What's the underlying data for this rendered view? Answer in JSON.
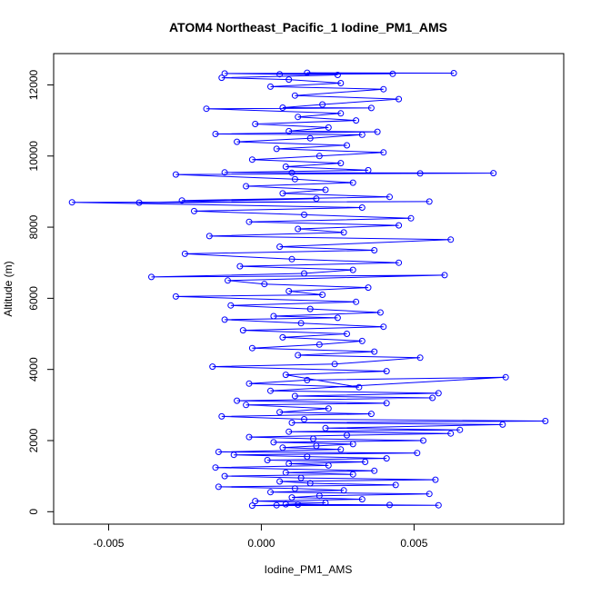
{
  "chart_data": {
    "type": "scatter",
    "title": "ATOM4 Northeast_Pacific_1 Iodine_PM1_AMS",
    "xlabel": "Iodine_PM1_AMS",
    "ylabel": "Altitude (m)",
    "xlim": [
      -0.0068,
      0.0099
    ],
    "ylim": [
      -350,
      12880
    ],
    "xticks": [
      -0.005,
      0.0,
      0.005
    ],
    "xtick_labels": [
      "-0.005",
      "0.000",
      "0.005"
    ],
    "yticks": [
      0,
      2000,
      4000,
      6000,
      8000,
      10000,
      12000
    ],
    "ytick_labels": [
      "0",
      "2000",
      "4000",
      "6000",
      "8000",
      "10000",
      "12000"
    ],
    "grid": false,
    "legend": "none",
    "marker": "open-circle",
    "connected_line": true,
    "series_color": "#0000ff",
    "series": [
      {
        "points": [
          [
            0.0005,
            180
          ],
          [
            0.0042,
            190
          ],
          [
            0.0012,
            200
          ],
          [
            -0.0003,
            170
          ],
          [
            0.0058,
            180
          ],
          [
            0.0008,
            210
          ],
          [
            0.0021,
            250
          ],
          [
            -0.0002,
            300
          ],
          [
            0.0033,
            350
          ],
          [
            0.001,
            400
          ],
          [
            0.0019,
            450
          ],
          [
            0.0055,
            500
          ],
          [
            0.0003,
            550
          ],
          [
            0.0027,
            600
          ],
          [
            0.0011,
            650
          ],
          [
            -0.0014,
            700
          ],
          [
            0.0044,
            750
          ],
          [
            0.0016,
            800
          ],
          [
            0.0006,
            850
          ],
          [
            0.0057,
            900
          ],
          [
            0.0013,
            950
          ],
          [
            -0.0012,
            1000
          ],
          [
            0.003,
            1050
          ],
          [
            0.0008,
            1100
          ],
          [
            0.0037,
            1150
          ],
          [
            -0.0015,
            1240
          ],
          [
            0.0022,
            1300
          ],
          [
            0.0009,
            1350
          ],
          [
            0.0034,
            1400
          ],
          [
            0.0002,
            1450
          ],
          [
            0.0041,
            1500
          ],
          [
            0.0015,
            1550
          ],
          [
            -0.0009,
            1600
          ],
          [
            0.0051,
            1650
          ],
          [
            -0.0014,
            1680
          ],
          [
            0.0026,
            1750
          ],
          [
            0.0007,
            1800
          ],
          [
            0.0018,
            1850
          ],
          [
            0.003,
            1900
          ],
          [
            0.0004,
            1950
          ],
          [
            0.0053,
            2000
          ],
          [
            0.0017,
            2050
          ],
          [
            -0.0004,
            2100
          ],
          [
            0.0028,
            2150
          ],
          [
            0.0062,
            2200
          ],
          [
            0.0009,
            2250
          ],
          [
            0.0065,
            2300
          ],
          [
            0.0021,
            2350
          ],
          [
            0.0079,
            2450
          ],
          [
            0.001,
            2500
          ],
          [
            0.0093,
            2550
          ],
          [
            0.0014,
            2600
          ],
          [
            -0.0013,
            2680
          ],
          [
            0.0036,
            2750
          ],
          [
            0.0006,
            2800
          ],
          [
            0.0022,
            2900
          ],
          [
            -0.0005,
            3000
          ],
          [
            0.0041,
            3050
          ],
          [
            -0.0008,
            3120
          ],
          [
            0.0056,
            3200
          ],
          [
            0.0011,
            3250
          ],
          [
            0.0058,
            3330
          ],
          [
            0.0003,
            3400
          ],
          [
            0.008,
            3780
          ],
          [
            0.0015,
            3700
          ],
          [
            -0.0004,
            3600
          ],
          [
            0.0032,
            3500
          ],
          [
            0.0008,
            3850
          ],
          [
            0.0041,
            3950
          ],
          [
            -0.0016,
            4080
          ],
          [
            0.0024,
            4150
          ],
          [
            0.0052,
            4330
          ],
          [
            0.0012,
            4400
          ],
          [
            0.0037,
            4500
          ],
          [
            -0.0003,
            4600
          ],
          [
            0.0019,
            4700
          ],
          [
            0.0033,
            4800
          ],
          [
            0.0007,
            4900
          ],
          [
            0.0028,
            5000
          ],
          [
            -0.0006,
            5100
          ],
          [
            0.004,
            5200
          ],
          [
            0.0013,
            5300
          ],
          [
            -0.0012,
            5400
          ],
          [
            0.0025,
            5450
          ],
          [
            0.0004,
            5500
          ],
          [
            0.0039,
            5600
          ],
          [
            0.0016,
            5700
          ],
          [
            -0.001,
            5800
          ],
          [
            0.0031,
            5900
          ],
          [
            -0.0028,
            6050
          ],
          [
            0.002,
            6100
          ],
          [
            0.0009,
            6200
          ],
          [
            0.0035,
            6300
          ],
          [
            0.0001,
            6400
          ],
          [
            -0.0011,
            6500
          ],
          [
            0.006,
            6650
          ],
          [
            -0.0036,
            6600
          ],
          [
            0.0014,
            6700
          ],
          [
            0.003,
            6800
          ],
          [
            -0.0007,
            6900
          ],
          [
            0.0045,
            7000
          ],
          [
            0.001,
            7100
          ],
          [
            -0.0025,
            7250
          ],
          [
            0.0037,
            7350
          ],
          [
            0.0006,
            7450
          ],
          [
            0.0062,
            7650
          ],
          [
            -0.0017,
            7750
          ],
          [
            0.0027,
            7850
          ],
          [
            0.0012,
            7950
          ],
          [
            0.0045,
            8050
          ],
          [
            -0.0004,
            8150
          ],
          [
            0.0049,
            8250
          ],
          [
            0.0014,
            8350
          ],
          [
            -0.0022,
            8450
          ],
          [
            0.0033,
            8550
          ],
          [
            -0.0062,
            8700
          ],
          [
            0.0055,
            8720
          ],
          [
            -0.004,
            8690
          ],
          [
            0.0018,
            8800
          ],
          [
            -0.0026,
            8750
          ],
          [
            0.0042,
            8850
          ],
          [
            0.0007,
            8950
          ],
          [
            0.0021,
            9050
          ],
          [
            -0.0005,
            9150
          ],
          [
            0.003,
            9250
          ],
          [
            0.0011,
            9350
          ],
          [
            -0.0028,
            9480
          ],
          [
            0.0076,
            9520
          ],
          [
            0.001,
            9530
          ],
          [
            0.0052,
            9510
          ],
          [
            -0.0012,
            9540
          ],
          [
            0.0035,
            9600
          ],
          [
            0.0008,
            9700
          ],
          [
            0.0026,
            9800
          ],
          [
            -0.0003,
            9900
          ],
          [
            0.0019,
            10000
          ],
          [
            0.004,
            10100
          ],
          [
            0.0005,
            10200
          ],
          [
            0.0028,
            10300
          ],
          [
            -0.0008,
            10400
          ],
          [
            0.0016,
            10500
          ],
          [
            0.0033,
            10600
          ],
          [
            -0.0015,
            10620
          ],
          [
            0.0038,
            10680
          ],
          [
            0.0009,
            10700
          ],
          [
            0.0022,
            10800
          ],
          [
            -0.0002,
            10900
          ],
          [
            0.0031,
            11000
          ],
          [
            0.0012,
            11100
          ],
          [
            0.0026,
            11200
          ],
          [
            -0.0018,
            11330
          ],
          [
            0.0036,
            11350
          ],
          [
            0.0007,
            11360
          ],
          [
            0.002,
            11450
          ],
          [
            0.0045,
            11600
          ],
          [
            0.0011,
            11700
          ],
          [
            0.004,
            11880
          ],
          [
            0.0003,
            11950
          ],
          [
            0.0026,
            12050
          ],
          [
            0.0009,
            12150
          ],
          [
            -0.0013,
            12200
          ],
          [
            0.0025,
            12280
          ],
          [
            -0.0012,
            12320
          ],
          [
            0.0063,
            12330
          ],
          [
            0.0015,
            12340
          ],
          [
            0.0043,
            12310
          ],
          [
            0.0006,
            12300
          ]
        ]
      }
    ]
  }
}
